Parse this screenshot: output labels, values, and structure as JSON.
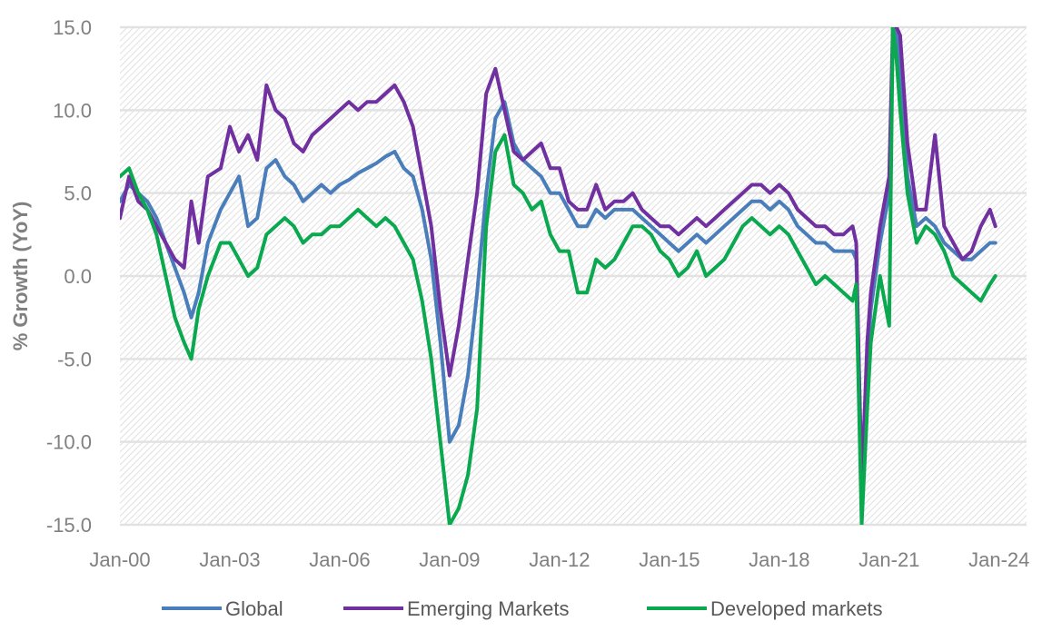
{
  "chart_data": {
    "type": "line",
    "title": "",
    "xlabel": "",
    "ylabel": "% Growth (YoY)",
    "ylim": [
      -15,
      15
    ],
    "yticks": [
      15,
      10,
      5,
      0,
      -5,
      -10,
      -15
    ],
    "ytick_labels": [
      "15.0",
      "10.0",
      "5.0",
      "0.0",
      "-5.0",
      "-10.0",
      "-15.0"
    ],
    "xlim": [
      2000.0,
      2024.75
    ],
    "xticks": [
      2000,
      2003,
      2006,
      2009,
      2012,
      2015,
      2018,
      2021,
      2024
    ],
    "xtick_labels": [
      "Jan-00",
      "Jan-03",
      "Jan-06",
      "Jan-09",
      "Jan-12",
      "Jan-15",
      "Jan-18",
      "Jan-21",
      "Jan-24"
    ],
    "legend_position": "bottom",
    "series": [
      {
        "name": "Global",
        "color": "#4a7ebb",
        "x": [
          2000,
          2000.25,
          2000.5,
          2000.75,
          2001,
          2001.25,
          2001.5,
          2001.75,
          2001.95,
          2002.15,
          2002.4,
          2002.75,
          2003,
          2003.25,
          2003.5,
          2003.75,
          2004,
          2004.25,
          2004.5,
          2004.75,
          2005,
          2005.25,
          2005.5,
          2005.75,
          2006,
          2006.25,
          2006.5,
          2006.75,
          2007,
          2007.25,
          2007.5,
          2007.75,
          2008,
          2008.25,
          2008.5,
          2008.75,
          2009,
          2009.25,
          2009.5,
          2009.75,
          2010,
          2010.25,
          2010.5,
          2010.75,
          2011,
          2011.25,
          2011.5,
          2011.75,
          2012,
          2012.25,
          2012.5,
          2012.75,
          2013,
          2013.25,
          2013.5,
          2013.75,
          2014,
          2014.25,
          2014.5,
          2014.75,
          2015,
          2015.25,
          2015.5,
          2015.75,
          2016,
          2016.25,
          2016.5,
          2016.75,
          2017,
          2017.25,
          2017.5,
          2017.75,
          2018,
          2018.25,
          2018.5,
          2018.75,
          2019,
          2019.25,
          2019.5,
          2019.75,
          2020,
          2020.1,
          2020.25,
          2020.4,
          2020.5,
          2020.75,
          2021,
          2021.1,
          2021.2,
          2021.3,
          2021.5,
          2021.75,
          2022,
          2022.25,
          2022.5,
          2022.75,
          2023,
          2023.25,
          2023.5,
          2023.75,
          2023.9
        ],
        "values": [
          4.5,
          5.5,
          5.0,
          4.5,
          3.5,
          2.0,
          0.5,
          -1.0,
          -2.5,
          -1.0,
          2.0,
          4.0,
          5.0,
          6.0,
          3.0,
          3.5,
          6.5,
          7.0,
          6.0,
          5.5,
          4.5,
          5.0,
          5.5,
          5.0,
          5.5,
          5.8,
          6.2,
          6.5,
          6.8,
          7.2,
          7.5,
          6.5,
          6.0,
          4.0,
          1.0,
          -4.0,
          -10.0,
          -9.0,
          -6.0,
          -1.0,
          5.0,
          9.5,
          10.5,
          8.0,
          7.0,
          6.5,
          6.0,
          5.0,
          5.0,
          4.0,
          3.0,
          3.0,
          4.0,
          3.5,
          4.0,
          4.0,
          4.0,
          3.5,
          3.0,
          2.5,
          2.0,
          1.5,
          2.0,
          2.5,
          2.0,
          2.5,
          3.0,
          3.5,
          4.0,
          4.5,
          4.5,
          4.0,
          4.5,
          4.0,
          3.0,
          2.5,
          2.0,
          2.0,
          1.5,
          1.5,
          1.5,
          1.0,
          -12.0,
          -5.0,
          -2.0,
          2.0,
          5.0,
          14.0,
          15.0,
          12.0,
          6.0,
          3.0,
          3.5,
          3.0,
          2.0,
          1.5,
          1.0,
          1.0,
          1.5,
          2.0,
          2.0
        ]
      },
      {
        "name": "Emerging Markets",
        "color": "#7030a0",
        "x": [
          2000,
          2000.25,
          2000.5,
          2000.75,
          2001,
          2001.25,
          2001.5,
          2001.75,
          2001.95,
          2002.15,
          2002.4,
          2002.75,
          2003,
          2003.25,
          2003.5,
          2003.75,
          2004,
          2004.25,
          2004.5,
          2004.75,
          2005,
          2005.25,
          2005.5,
          2005.75,
          2006,
          2006.25,
          2006.5,
          2006.75,
          2007,
          2007.25,
          2007.5,
          2007.75,
          2008,
          2008.25,
          2008.5,
          2008.75,
          2009,
          2009.25,
          2009.5,
          2009.75,
          2010,
          2010.25,
          2010.5,
          2010.75,
          2011,
          2011.25,
          2011.5,
          2011.75,
          2012,
          2012.25,
          2012.5,
          2012.75,
          2013,
          2013.25,
          2013.5,
          2013.75,
          2014,
          2014.25,
          2014.5,
          2014.75,
          2015,
          2015.25,
          2015.5,
          2015.75,
          2016,
          2016.25,
          2016.5,
          2016.75,
          2017,
          2017.25,
          2017.5,
          2017.75,
          2018,
          2018.25,
          2018.5,
          2018.75,
          2019,
          2019.25,
          2019.5,
          2019.75,
          2020,
          2020.1,
          2020.25,
          2020.4,
          2020.5,
          2020.75,
          2021,
          2021.1,
          2021.2,
          2021.3,
          2021.5,
          2021.75,
          2022,
          2022.25,
          2022.5,
          2022.75,
          2023,
          2023.25,
          2023.5,
          2023.75,
          2023.9
        ],
        "values": [
          3.5,
          6.0,
          4.5,
          4.0,
          3.0,
          2.0,
          1.0,
          0.5,
          4.5,
          2.0,
          6.0,
          6.5,
          9.0,
          7.5,
          8.5,
          7.0,
          11.5,
          10.0,
          9.5,
          8.0,
          7.5,
          8.5,
          9.0,
          9.5,
          10.0,
          10.5,
          10.0,
          10.5,
          10.5,
          11.0,
          11.5,
          10.5,
          9.0,
          6.0,
          3.0,
          -2.0,
          -6.0,
          -3.0,
          1.0,
          5.0,
          11.0,
          12.5,
          10.0,
          7.5,
          7.0,
          7.5,
          8.0,
          6.5,
          6.5,
          4.5,
          4.0,
          4.0,
          5.5,
          4.0,
          4.5,
          4.5,
          5.0,
          4.0,
          3.5,
          3.0,
          3.0,
          2.5,
          3.0,
          3.5,
          3.0,
          3.5,
          4.0,
          4.5,
          5.0,
          5.5,
          5.5,
          5.0,
          5.5,
          5.0,
          4.0,
          3.5,
          3.0,
          3.0,
          2.5,
          2.5,
          3.0,
          2.0,
          -13.0,
          -4.0,
          -1.0,
          3.0,
          6.0,
          15.0,
          15.0,
          14.5,
          8.0,
          4.0,
          4.0,
          8.5,
          3.0,
          2.0,
          1.0,
          1.5,
          3.0,
          4.0,
          3.0
        ]
      },
      {
        "name": "Developed markets",
        "color": "#0aa84f",
        "x": [
          2000,
          2000.25,
          2000.5,
          2000.75,
          2001,
          2001.25,
          2001.5,
          2001.75,
          2001.95,
          2002.15,
          2002.4,
          2002.75,
          2003,
          2003.25,
          2003.5,
          2003.75,
          2004,
          2004.25,
          2004.5,
          2004.75,
          2005,
          2005.25,
          2005.5,
          2005.75,
          2006,
          2006.25,
          2006.5,
          2006.75,
          2007,
          2007.25,
          2007.5,
          2007.75,
          2008,
          2008.25,
          2008.5,
          2008.75,
          2009,
          2009.25,
          2009.5,
          2009.75,
          2010,
          2010.25,
          2010.5,
          2010.75,
          2011,
          2011.25,
          2011.5,
          2011.75,
          2012,
          2012.25,
          2012.5,
          2012.75,
          2013,
          2013.25,
          2013.5,
          2013.75,
          2014,
          2014.25,
          2014.5,
          2014.75,
          2015,
          2015.25,
          2015.5,
          2015.75,
          2016,
          2016.25,
          2016.5,
          2016.75,
          2017,
          2017.25,
          2017.5,
          2017.75,
          2018,
          2018.25,
          2018.5,
          2018.75,
          2019,
          2019.25,
          2019.5,
          2019.75,
          2020,
          2020.1,
          2020.25,
          2020.4,
          2020.5,
          2020.75,
          2021,
          2021.1,
          2021.2,
          2021.3,
          2021.5,
          2021.75,
          2022,
          2022.25,
          2022.5,
          2022.75,
          2023,
          2023.25,
          2023.5,
          2023.75,
          2023.9
        ],
        "values": [
          6.0,
          6.5,
          5.0,
          4.0,
          2.5,
          0.0,
          -2.5,
          -4.0,
          -5.0,
          -2.0,
          0.0,
          2.0,
          2.0,
          1.0,
          0.0,
          0.5,
          2.5,
          3.0,
          3.5,
          3.0,
          2.0,
          2.5,
          2.5,
          3.0,
          3.0,
          3.5,
          4.0,
          3.5,
          3.0,
          3.5,
          3.0,
          2.0,
          1.0,
          -1.5,
          -5.0,
          -10.0,
          -15.0,
          -14.0,
          -12.0,
          -8.0,
          3.0,
          7.5,
          8.5,
          5.5,
          5.0,
          4.0,
          4.5,
          2.5,
          1.5,
          1.5,
          -1.0,
          -1.0,
          1.0,
          0.5,
          1.0,
          2.0,
          3.0,
          3.0,
          2.5,
          1.5,
          1.0,
          0.0,
          0.5,
          1.5,
          0.0,
          0.5,
          1.0,
          2.0,
          3.0,
          3.5,
          3.0,
          2.5,
          3.0,
          2.5,
          1.5,
          0.5,
          -0.5,
          0.0,
          -0.5,
          -1.0,
          -1.5,
          -0.5,
          -15.0,
          -8.0,
          -4.0,
          0.0,
          -3.0,
          15.0,
          13.0,
          10.0,
          5.0,
          2.0,
          3.0,
          2.5,
          1.5,
          0.0,
          -0.5,
          -1.0,
          -1.5,
          -0.5,
          0.0
        ]
      }
    ]
  }
}
